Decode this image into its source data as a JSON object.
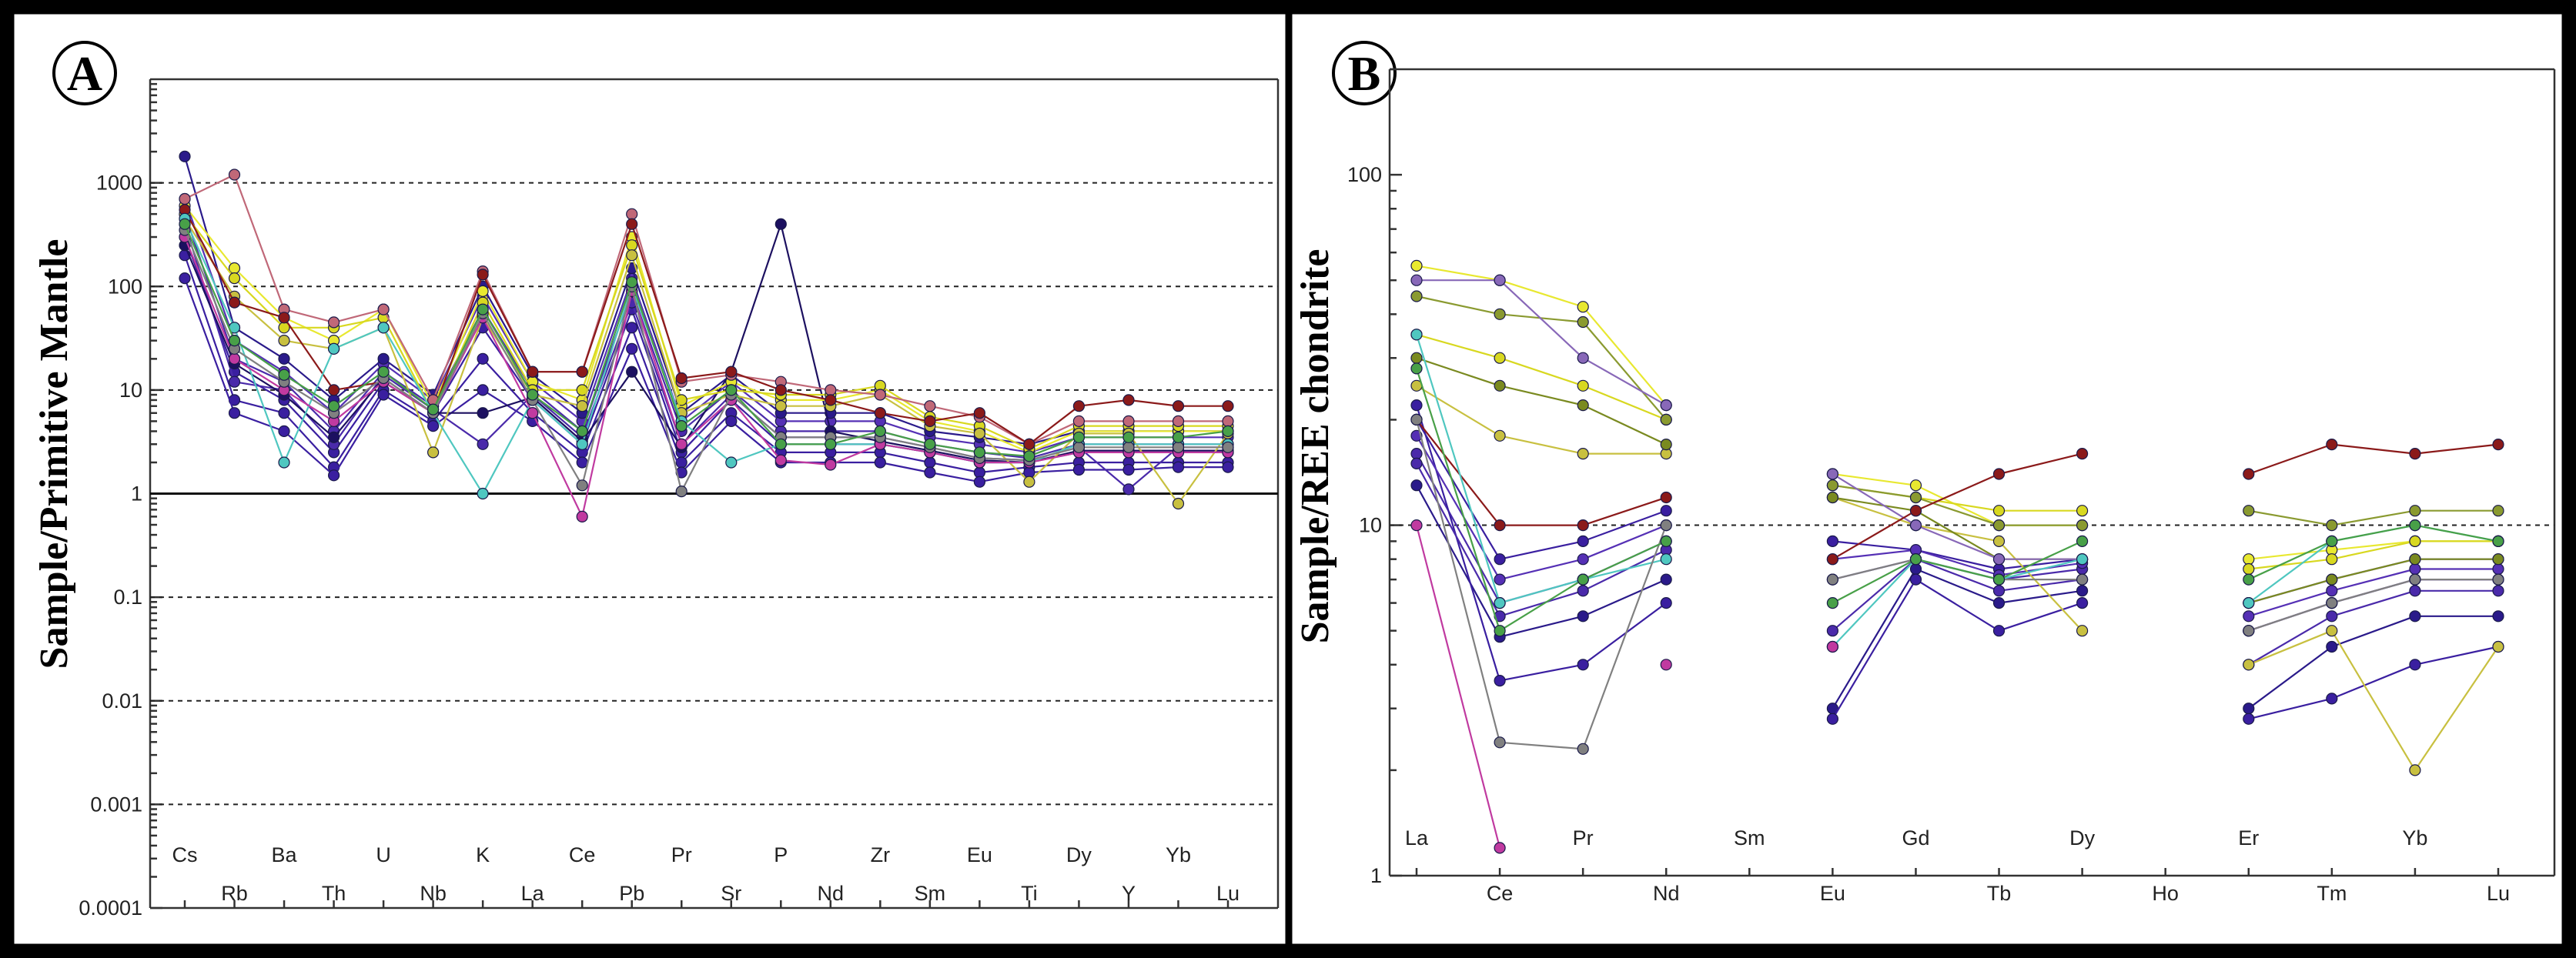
{
  "figure": {
    "panels": [
      {
        "letter": "A",
        "chart_data": {
          "type": "line",
          "title": "",
          "ylabel": "Sample/Primitive Mantle",
          "xlabel": "",
          "yscale": "log",
          "ylim": [
            0.0001,
            10000
          ],
          "y_ticks": [
            "0.0001",
            "0.001",
            "0.01",
            "0.1",
            "1",
            "10",
            "100",
            "1000"
          ],
          "categories": [
            "Cs",
            "Rb",
            "Ba",
            "Th",
            "U",
            "Nb",
            "K",
            "La",
            "Ce",
            "Pb",
            "Pr",
            "Sr",
            "P",
            "Nd",
            "Zr",
            "Sm",
            "Eu",
            "Ti",
            "Dy",
            "Y",
            "Yb",
            "Lu"
          ],
          "grid": "dashed horizontal at 1000, 100, 10, 0.1, 0.01, 0.001",
          "reference_line": 1,
          "legend": "none",
          "series": [
            {
              "color": "#3a1fa0",
              "values": [
                300,
                15,
                8,
                2.5,
                12,
                6,
                40,
                8,
                3,
                60,
                2.5,
                8,
                3,
                3,
                3,
                2.5,
                2,
                2,
                2.5,
                2.5,
                2.5,
                2.5
              ]
            },
            {
              "color": "#4a2aaa",
              "values": [
                500,
                20,
                12,
                4,
                15,
                7,
                60,
                10,
                4,
                90,
                4,
                10,
                4,
                4,
                4,
                3,
                2.5,
                2.2,
                3,
                3,
                3,
                3
              ]
            },
            {
              "color": "#3a1fa0",
              "values": [
                200,
                8,
                6,
                1.8,
                10,
                5,
                20,
                6,
                2.5,
                40,
                2,
                6,
                2.5,
                2.5,
                2.5,
                2,
                1.6,
                1.8,
                2,
                2,
                2,
                2
              ]
            },
            {
              "color": "#5530b5",
              "values": [
                700,
                30,
                15,
                6,
                18,
                8,
                80,
                12,
                5,
                120,
                5,
                12,
                5,
                5,
                5,
                3.5,
                3,
                2.5,
                3.5,
                3.5,
                3.5,
                3.5
              ]
            },
            {
              "color": "#2a1a8a",
              "values": [
                1800,
                40,
                20,
                8,
                20,
                9,
                100,
                14,
                6,
                150,
                6,
                14,
                6,
                6,
                6,
                4,
                3.5,
                3,
                4,
                4,
                4,
                4
              ]
            },
            {
              "color": "#3a1fa0",
              "values": [
                120,
                6,
                4,
                1.5,
                9,
                4.5,
                10,
                5,
                2,
                25,
                1.6,
                5,
                2,
                2,
                2,
                1.6,
                1.3,
                1.6,
                1.7,
                1.7,
                1.8,
                1.8
              ]
            },
            {
              "color": "#4a2aaa",
              "values": [
                400,
                12,
                10,
                3,
                14,
                6.5,
                3,
                9,
                3.5,
                70,
                3,
                9,
                3.5,
                3.5,
                3.5,
                2.8,
                2.2,
                2.1,
                2.8,
                1.1,
                2.8,
                2.8
              ]
            },
            {
              "color": "#1c1060",
              "values": [
                250,
                18,
                9,
                3.5,
                13,
                6,
                6,
                8.5,
                3.2,
                15,
                2.8,
                15,
                400,
                4,
                3.2,
                2.6,
                2.1,
                2,
                2.6,
                2.6,
                2.6,
                2.6
              ]
            },
            {
              "color": "#e8e830",
              "values": [
                600,
                150,
                50,
                30,
                60,
                7,
                90,
                12,
                8,
                300,
                7,
                12,
                8,
                8,
                10,
                5,
                4,
                2.5,
                4,
                4,
                4,
                4
              ]
            },
            {
              "color": "#d8d820",
              "values": [
                500,
                120,
                40,
                40,
                50,
                6,
                70,
                10,
                10,
                250,
                8,
                10,
                9,
                9,
                11,
                5.5,
                4.5,
                2.7,
                4.5,
                4.5,
                4.5,
                4.5
              ]
            },
            {
              "color": "#c8c040",
              "values": [
                450,
                80,
                30,
                25,
                40,
                2.5,
                50,
                9,
                7,
                200,
                6,
                9,
                7,
                7,
                9,
                4.5,
                3.8,
                1.3,
                3.8,
                3.8,
                0.8,
                3.8
              ]
            },
            {
              "color": "#c06878",
              "values": [
                700,
                1200,
                60,
                45,
                60,
                8,
                140,
                15,
                15,
                500,
                12,
                14,
                12,
                10,
                9,
                7,
                5.5,
                3,
                5,
                5,
                5,
                5
              ]
            },
            {
              "color": "#8b1a1a",
              "values": [
                550,
                70,
                50,
                10,
                12,
                6,
                130,
                15,
                15,
                400,
                13,
                15,
                10,
                8,
                6,
                5,
                6,
                3,
                7,
                8,
                7,
                7
              ]
            },
            {
              "color": "#4fc7c0",
              "values": [
                450,
                40,
                2,
                25,
                40,
                6,
                1,
                8,
                3,
                100,
                5,
                2,
                3,
                3,
                3,
                2.5,
                2,
                2,
                3,
                3,
                3,
                3
              ]
            },
            {
              "color": "#c03aa0",
              "values": [
                300,
                20,
                10,
                5,
                12,
                6,
                50,
                6,
                0.6,
                90,
                3,
                8,
                2.1,
                1.9,
                3,
                2.5,
                2,
                2,
                2.5,
                2.5,
                2.5,
                2.5
              ]
            },
            {
              "color": "#808080",
              "values": [
                350,
                25,
                12,
                6,
                13,
                6,
                55,
                8,
                1.2,
                100,
                1.05,
                9,
                3.5,
                3.5,
                3.5,
                2.8,
                2.2,
                2.1,
                2.8,
                2.8,
                2.8,
                2.8
              ]
            },
            {
              "color": "#48a048",
              "values": [
                400,
                30,
                14,
                7,
                15,
                6.5,
                60,
                9,
                4,
                110,
                4.5,
                10,
                3,
                3,
                4,
                3,
                2.5,
                2.3,
                3.5,
                3.5,
                3.5,
                4
              ]
            }
          ]
        }
      },
      {
        "letter": "B",
        "chart_data": {
          "type": "line",
          "title": "",
          "ylabel": "Sample/REE chondrite",
          "xlabel": "",
          "yscale": "log",
          "ylim": [
            1,
            200
          ],
          "y_ticks": [
            "1",
            "10",
            "100"
          ],
          "categories": [
            "La",
            "Ce",
            "Pr",
            "Nd",
            "Sm",
            "Eu",
            "Gd",
            "Tb",
            "Dy",
            "Ho",
            "Er",
            "Tm",
            "Yb",
            "Lu"
          ],
          "grid": "dashed horizontal at 10",
          "legend": "none",
          "series": [
            {
              "color": "#3a1fa0",
              "values": [
                20,
                8,
                9,
                11,
                null,
                9,
                8.5,
                7.5,
                8,
                null,
                6,
                7,
                8,
                8
              ]
            },
            {
              "color": "#4a2aaa",
              "values": [
                16,
                6,
                7,
                9,
                null,
                7,
                8,
                7,
                7.5,
                null,
                5,
                6,
                7,
                7
              ]
            },
            {
              "color": "#2a1a8a",
              "values": [
                13,
                4.8,
                5.5,
                7,
                null,
                3,
                7.5,
                6,
                6.5,
                null,
                3,
                4.5,
                5.5,
                5.5
              ]
            },
            {
              "color": "#3a1fa0",
              "values": [
                22,
                3.6,
                4,
                6,
                null,
                2.8,
                7,
                5,
                6,
                null,
                2.8,
                3.2,
                4,
                4.5
              ]
            },
            {
              "color": "#5530b5",
              "values": [
                18,
                7,
                8,
                10,
                null,
                8,
                8.5,
                7.2,
                7.8,
                null,
                5.5,
                6.5,
                7.5,
                7.5
              ]
            },
            {
              "color": "#4a2aaa",
              "values": [
                15,
                5.5,
                6.5,
                8.5,
                null,
                5,
                8,
                6.5,
                7,
                null,
                4,
                5.5,
                6.5,
                6.5
              ]
            },
            {
              "color": "#e8e830",
              "values": [
                55,
                50,
                42,
                22,
                null,
                14,
                13,
                10,
                10,
                null,
                8,
                8.5,
                9,
                9
              ]
            },
            {
              "color": "#d8d820",
              "values": [
                35,
                30,
                25,
                20,
                null,
                13,
                12,
                11,
                11,
                null,
                7.5,
                8,
                9,
                9
              ]
            },
            {
              "color": "#c8c040",
              "values": [
                25,
                18,
                16,
                16,
                null,
                12,
                10,
                9,
                5,
                null,
                4,
                5,
                2,
                4.5
              ]
            },
            {
              "color": "#8a9a30",
              "values": [
                45,
                40,
                38,
                20,
                null,
                13,
                12,
                10,
                10,
                null,
                11,
                10,
                11,
                11
              ]
            },
            {
              "color": "#7a8a20",
              "values": [
                30,
                25,
                22,
                17,
                null,
                12,
                11,
                8,
                8,
                null,
                6,
                7,
                8,
                8
              ]
            },
            {
              "color": "#8868b8",
              "values": [
                50,
                50,
                30,
                22,
                null,
                14,
                10,
                8,
                8,
                null,
                5,
                6,
                7,
                7
              ]
            },
            {
              "color": "#8b1a1a",
              "values": [
                20,
                10,
                10,
                12,
                null,
                8,
                11,
                14,
                16,
                null,
                14,
                17,
                16,
                17
              ]
            },
            {
              "color": "#4fc7c0",
              "values": [
                35,
                6,
                7,
                8,
                null,
                4.5,
                8,
                7,
                8,
                null,
                6,
                9,
                10,
                9
              ]
            },
            {
              "color": "#c03aa0",
              "values": [
                10,
                1.2,
                null,
                4,
                null,
                4.5,
                null,
                null,
                null,
                null,
                null,
                null,
                null,
                null
              ]
            },
            {
              "color": "#808080",
              "values": [
                20,
                2.4,
                2.3,
                10,
                null,
                7,
                8,
                7,
                7,
                null,
                5,
                6,
                7,
                7
              ]
            },
            {
              "color": "#48a048",
              "values": [
                28,
                5,
                7,
                9,
                null,
                6,
                8,
                7,
                9,
                null,
                7,
                9,
                10,
                9
              ]
            }
          ]
        }
      }
    ]
  }
}
